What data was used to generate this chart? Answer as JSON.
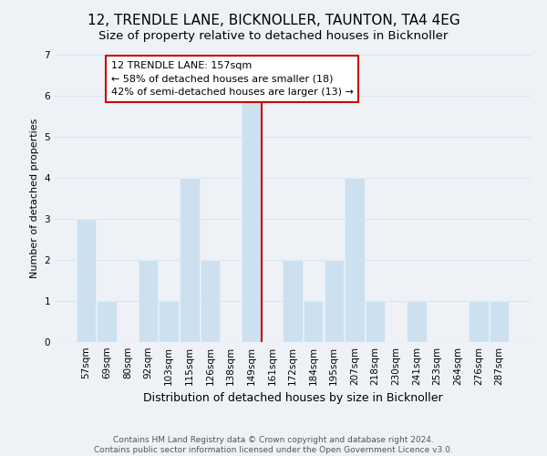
{
  "title": "12, TRENDLE LANE, BICKNOLLER, TAUNTON, TA4 4EG",
  "subtitle": "Size of property relative to detached houses in Bicknoller",
  "xlabel": "Distribution of detached houses by size in Bicknoller",
  "ylabel": "Number of detached properties",
  "bar_labels": [
    "57sqm",
    "69sqm",
    "80sqm",
    "92sqm",
    "103sqm",
    "115sqm",
    "126sqm",
    "138sqm",
    "149sqm",
    "161sqm",
    "172sqm",
    "184sqm",
    "195sqm",
    "207sqm",
    "218sqm",
    "230sqm",
    "241sqm",
    "253sqm",
    "264sqm",
    "276sqm",
    "287sqm"
  ],
  "bar_values": [
    3,
    1,
    0,
    2,
    1,
    4,
    2,
    0,
    6,
    0,
    2,
    1,
    2,
    4,
    1,
    0,
    1,
    0,
    0,
    1,
    1
  ],
  "bar_color": "#cce0f0",
  "bar_edge_color": "#e8f0f8",
  "marker_line_x_label": "161sqm",
  "marker_line_color": "#cc0000",
  "annotation_box_edge_color": "#cc0000",
  "annotation_lines": [
    "12 TRENDLE LANE: 157sqm",
    "← 58% of detached houses are smaller (18)",
    "42% of semi-detached houses are larger (13) →"
  ],
  "ylim": [
    0,
    7
  ],
  "yticks": [
    0,
    1,
    2,
    3,
    4,
    5,
    6,
    7
  ],
  "footer_lines": [
    "Contains HM Land Registry data © Crown copyright and database right 2024.",
    "Contains public sector information licensed under the Open Government Licence v3.0."
  ],
  "background_color": "#eef2f7",
  "plot_background_color": "#eef2f7",
  "grid_color": "#d8e4f0",
  "title_fontsize": 11,
  "subtitle_fontsize": 9.5,
  "xlabel_fontsize": 9,
  "ylabel_fontsize": 8,
  "tick_fontsize": 7.5,
  "annotation_fontsize": 8,
  "footer_fontsize": 6.5
}
